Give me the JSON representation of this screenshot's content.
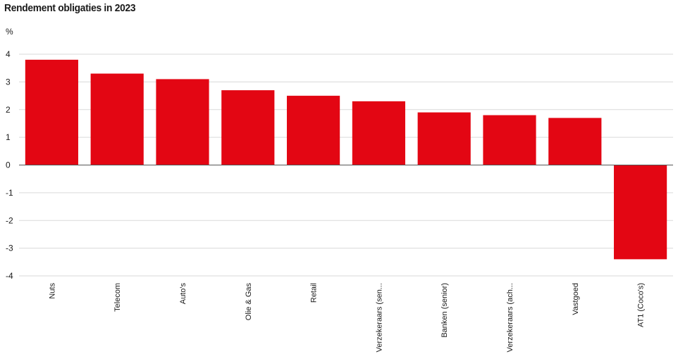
{
  "chart_data": {
    "type": "bar",
    "title": "Rendement obligaties in 2023",
    "ylabel": "%",
    "xlabel": "",
    "ylim": [
      -4,
      4
    ],
    "yticks": [
      4,
      3,
      2,
      1,
      0,
      -1,
      -2,
      -3,
      -4
    ],
    "grid": true,
    "categories": [
      "Nuts",
      "Telecom",
      "Auto's",
      "Olie & Gas",
      "Retail",
      "Verzekeraars (sen...",
      "Banken (senior)",
      "Verzekeraars (ach...",
      "Vastgoed",
      "AT1 (Coco's)"
    ],
    "values": [
      3.8,
      3.3,
      3.1,
      2.7,
      2.5,
      2.3,
      1.9,
      1.8,
      1.7,
      -3.4
    ],
    "bar_color": "#e30613",
    "grid_color": "#d9d9d9"
  }
}
